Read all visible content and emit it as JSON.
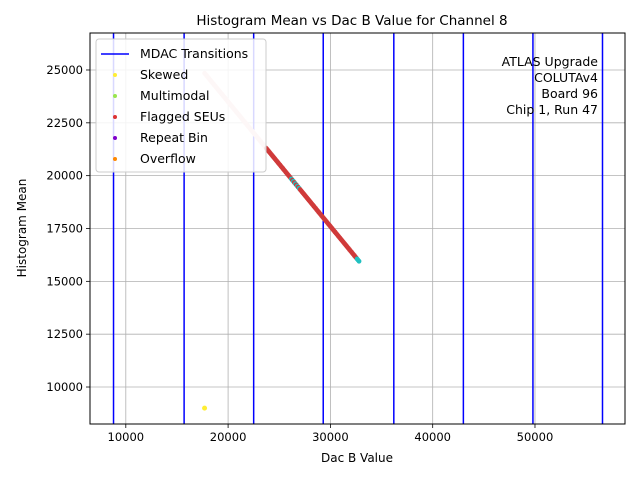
{
  "chart_data": {
    "type": "scatter",
    "title": "Histogram Mean vs Dac B Value for Channel 8",
    "xlabel": "Dac B Value",
    "ylabel": "Histogram Mean",
    "xlim": [
      6500,
      58800
    ],
    "ylim": [
      8250,
      26750
    ],
    "xticks": [
      10000,
      20000,
      30000,
      40000,
      50000
    ],
    "xtick_labels": [
      "10000",
      "20000",
      "30000",
      "40000",
      "50000"
    ],
    "yticks": [
      10000,
      12500,
      15000,
      17500,
      20000,
      22500,
      25000
    ],
    "ytick_labels": [
      "10000",
      "12500",
      "15000",
      "17500",
      "20000",
      "22500",
      "25000"
    ],
    "grid": true,
    "legend_position": "top-left",
    "mdac_transitions": {
      "name": "MDAC Transitions",
      "color": "#0000ff",
      "x": [
        8800,
        15700,
        22500,
        29300,
        36200,
        43000,
        49800,
        56600
      ]
    },
    "series": [
      {
        "name": "Skewed",
        "color": "#ffee33",
        "points": [
          [
            17700,
            9000
          ]
        ]
      },
      {
        "name": "Multimodal",
        "color": "#99e64d",
        "points": []
      },
      {
        "name": "Flagged SEUs",
        "color": "#dd3333",
        "points": []
      },
      {
        "name": "Repeat Bin",
        "color": "#8000cc",
        "points": []
      },
      {
        "name": "Overflow",
        "color": "#ff8800",
        "points": []
      }
    ],
    "main_trend": {
      "x_start": 17700,
      "y_start": 24850,
      "x_end": 32800,
      "y_end": 15950,
      "colors": {
        "light": "#f2c8c8",
        "dark": "#d03a3a",
        "accent": "#20c0c0"
      }
    },
    "annotation": [
      "ATLAS Upgrade",
      "COLUTAv4",
      "Board 96",
      "Chip 1, Run 47"
    ]
  }
}
